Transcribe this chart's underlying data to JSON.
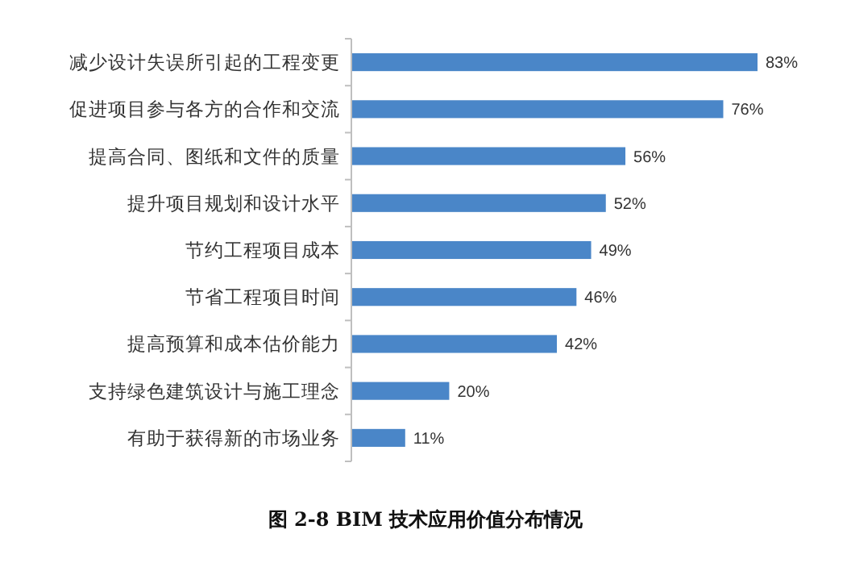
{
  "chart_data": {
    "type": "bar",
    "orientation": "horizontal",
    "title": "图 2-8 BIM 技术应用价值分布情况",
    "categories": [
      "减少设计失误所引起的工程变更",
      "促进项目参与各方的合作和交流",
      "提高合同、图纸和文件的质量",
      "提升项目规划和设计水平",
      "节约工程项目成本",
      "节省工程项目时间",
      "提高预算和成本估价能力",
      "支持绿色建筑设计与施工理念",
      "有助于获得新的市场业务"
    ],
    "values": [
      83,
      76,
      56,
      52,
      49,
      46,
      42,
      20,
      11
    ],
    "value_labels": [
      "83%",
      "76%",
      "56%",
      "52%",
      "49%",
      "46%",
      "42%",
      "20%",
      "11%"
    ],
    "color": "#4a86c8"
  }
}
